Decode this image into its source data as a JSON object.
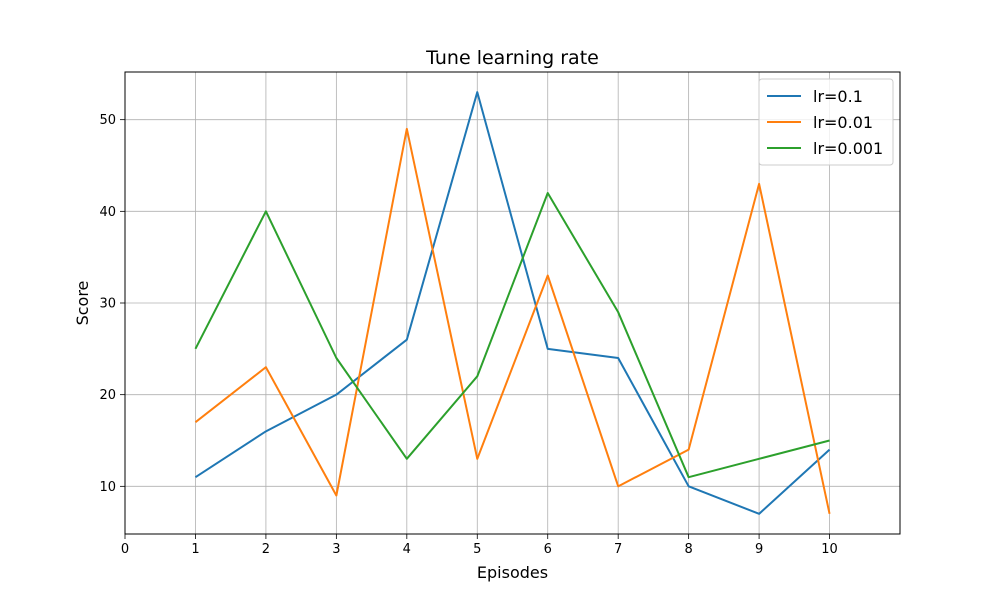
{
  "chart_data": {
    "type": "line",
    "title": "Tune learning rate",
    "xlabel": "Episodes",
    "ylabel": "Score",
    "x": [
      1,
      2,
      3,
      4,
      5,
      6,
      7,
      8,
      9,
      10
    ],
    "xlim": [
      0,
      11
    ],
    "ylim": [
      4.8,
      55.2
    ],
    "xticks": [
      0,
      1,
      2,
      3,
      4,
      5,
      6,
      7,
      8,
      9,
      10
    ],
    "yticks": [
      10,
      20,
      30,
      40,
      50
    ],
    "grid": true,
    "legend_position": "top-right",
    "series": [
      {
        "name": "lr=0.1",
        "color": "#1f77b4",
        "values": [
          11,
          16,
          20,
          26,
          53,
          25,
          24,
          10,
          7,
          14
        ]
      },
      {
        "name": "lr=0.01",
        "color": "#ff7f0e",
        "values": [
          17,
          23,
          9,
          49,
          13,
          33,
          10,
          14,
          43,
          7
        ]
      },
      {
        "name": "lr=0.001",
        "color": "#2ca02c",
        "values": [
          25,
          40,
          24,
          13,
          22,
          42,
          29,
          11,
          13,
          15
        ]
      }
    ]
  }
}
